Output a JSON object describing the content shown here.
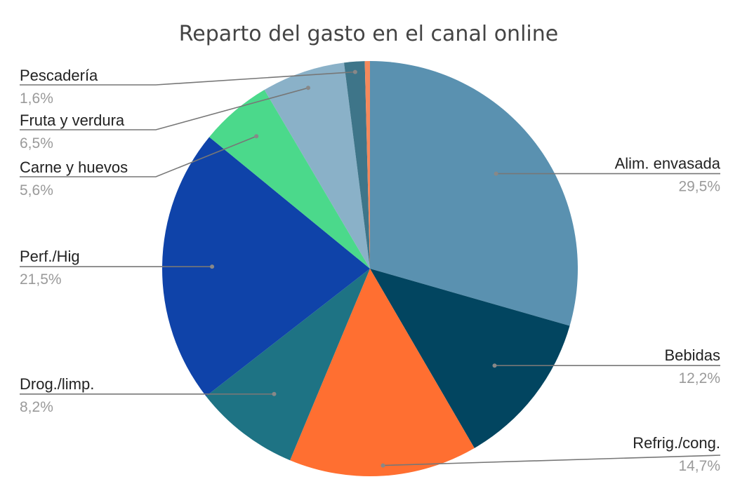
{
  "chart_data": {
    "type": "pie",
    "title": "Reparto del gasto en el canal online",
    "slices": [
      {
        "label": "Alim. envasada",
        "value": 29.5,
        "value_text": "29,5%",
        "color": "#5a91b0"
      },
      {
        "label": "Bebidas",
        "value": 12.2,
        "value_text": "12,2%",
        "color": "#024560"
      },
      {
        "label": "Refrig./cong.",
        "value": 14.7,
        "value_text": "14,7%",
        "color": "#ff6f31"
      },
      {
        "label": "Drog./limp.",
        "value": 8.2,
        "value_text": "8,2%",
        "color": "#1e7384"
      },
      {
        "label": "Perf./Hig",
        "value": 21.5,
        "value_text": "21,5%",
        "color": "#0f43a9"
      },
      {
        "label": "Carne y huevos",
        "value": 5.6,
        "value_text": "5,6%",
        "color": "#4bd98b"
      },
      {
        "label": "Fruta y verdura",
        "value": 6.5,
        "value_text": "6,5%",
        "color": "#8ab1c8"
      },
      {
        "label": "Pescadería",
        "value": 1.6,
        "value_text": "1,6%",
        "color": "#3e7589"
      },
      {
        "label": "",
        "value": 0.4,
        "value_text": "",
        "color": "#f4895c"
      }
    ],
    "legend": "none"
  }
}
